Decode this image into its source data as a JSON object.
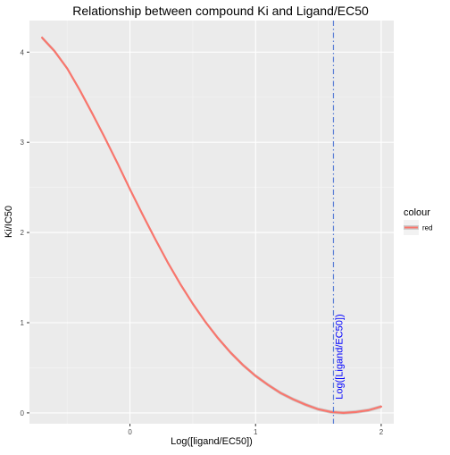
{
  "chart_data": {
    "type": "line",
    "title": "Relationship between compound Ki and Ligand/EC50",
    "xlabel": "Log([ligand/EC50])",
    "ylabel": "Ki/IC50",
    "xlim": [
      -0.8,
      2.1
    ],
    "ylim": [
      -0.12,
      4.35
    ],
    "x_ticks": [
      0,
      1,
      2
    ],
    "y_ticks": [
      0,
      1,
      2,
      3,
      4
    ],
    "grid": true,
    "legend": {
      "title": "colour",
      "position": "right",
      "entries": [
        {
          "label": "red",
          "color": "#F8766D"
        }
      ]
    },
    "series": [
      {
        "name": "red",
        "color": "#F8766D",
        "x": [
          -0.7,
          -0.6,
          -0.5,
          -0.4,
          -0.3,
          -0.2,
          -0.1,
          0.0,
          0.1,
          0.2,
          0.3,
          0.4,
          0.5,
          0.6,
          0.7,
          0.8,
          0.9,
          1.0,
          1.1,
          1.2,
          1.3,
          1.4,
          1.5,
          1.6,
          1.7,
          1.8,
          1.9,
          2.0
        ],
        "y": [
          4.16,
          4.01,
          3.82,
          3.58,
          3.32,
          3.05,
          2.77,
          2.48,
          2.2,
          1.93,
          1.67,
          1.43,
          1.21,
          1.01,
          0.83,
          0.67,
          0.53,
          0.41,
          0.31,
          0.22,
          0.15,
          0.09,
          0.04,
          0.01,
          0.0,
          0.01,
          0.03,
          0.07
        ]
      }
    ],
    "annotations": [
      {
        "type": "vline",
        "x": 1.62,
        "color": "#5B7FD6",
        "linestyle": "dashdot",
        "label": "Log([Ligand/EC50])",
        "label_color": "#0000FF"
      }
    ]
  }
}
